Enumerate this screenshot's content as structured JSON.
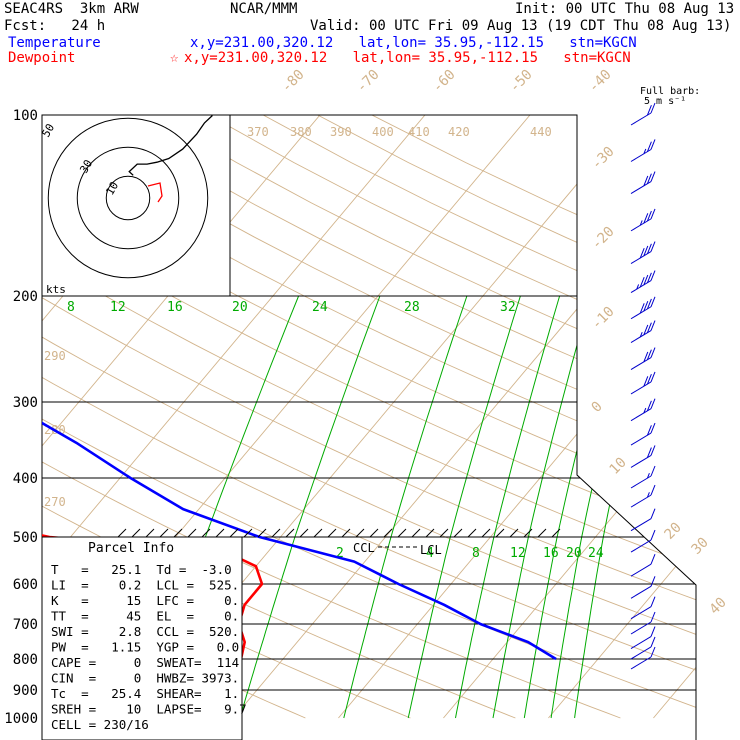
{
  "header": {
    "model": "SEAC4RS  3km ARW",
    "org": "NCAR/MMM",
    "init": "Init: 00 UTC Thu 08 Aug 13",
    "fcst": "Fcst:   24 h",
    "valid": "Valid: 00 UTC Fri 09 Aug 13 (19 CDT Thu 08 Aug 13)",
    "temp_label": "Temperature",
    "temp_loc": "x,y=231.00,320.12   lat,lon= 35.95,-112.15   stn=KGCN",
    "dew_label": "Dewpoint",
    "dew_loc": "x,y=231.00,320.12   lat,lon= 35.95,-112.15   stn=KGCN",
    "dew_star": "☆",
    "barb_title": "Full barb:",
    "barb_unit": "5 m s⁻¹"
  },
  "colors": {
    "temperature": "#0000ff",
    "dewpoint": "#ff0000",
    "isotherm": "#d2b48c",
    "mixing_ratio": "#00aa00",
    "isobar": "#000000"
  },
  "chart_data": {
    "type": "line",
    "subtype": "skew-T log-P sounding",
    "pressure_levels": [
      100,
      200,
      300,
      400,
      500,
      600,
      700,
      800,
      900,
      1000
    ],
    "isotherm_labels": [
      "-80",
      "-70",
      "-60",
      "-50",
      "-40",
      "-30",
      "-20",
      "-10",
      "0",
      "10",
      "20",
      "30",
      "40"
    ],
    "dry_adiabat_labels": [
      "370",
      "380",
      "390",
      "400",
      "410",
      "420",
      "440",
      "290",
      "280",
      "270"
    ],
    "mixing_ratio_labels_top": [
      "8",
      "12",
      "16",
      "20",
      "24",
      "28",
      "32"
    ],
    "mixing_ratio_labels_low": [
      "2",
      "4",
      "8",
      "12",
      "16",
      "20",
      "24"
    ],
    "series": [
      {
        "name": "Temperature",
        "color": "#0000ff",
        "pressure": [
          100,
          130,
          160,
          200,
          230,
          260,
          300,
          350,
          400,
          450,
          500,
          550,
          600,
          650,
          700,
          750,
          800
        ],
        "temp_c": [
          -73,
          -64,
          -58,
          -55,
          -55,
          -53,
          -47,
          -37,
          -29,
          -21.5,
          -12,
          -1,
          5,
          11,
          16,
          22,
          26
        ]
      },
      {
        "name": "Dewpoint",
        "color": "#ff0000",
        "pressure": [
          100,
          120,
          140,
          160,
          180,
          200,
          230,
          260,
          300,
          350,
          380,
          420,
          460,
          500,
          530,
          560,
          600,
          650,
          700,
          750,
          800
        ],
        "temp_c": [
          -86,
          -83,
          -82,
          -85,
          -80,
          -74,
          -68,
          -65,
          -62,
          -60,
          -57,
          -51,
          -44,
          -32,
          -14,
          -10,
          -8,
          -8,
          -7,
          -5,
          -4
        ]
      }
    ],
    "markers": {
      "ccl_label": "CCL",
      "lcl_label": "LCL"
    },
    "hodograph": {
      "unit_label": "kts",
      "ring_labels": [
        "50",
        "30",
        "10"
      ],
      "u_kts": [
        -10,
        -12,
        -8,
        -3,
        2,
        8,
        15,
        22,
        26,
        30
      ],
      "v_kts": [
        10,
        12,
        16,
        16,
        17,
        19,
        24,
        32,
        38,
        42
      ]
    },
    "wind_barbs": {
      "pressure": [
        100,
        115,
        130,
        150,
        170,
        190,
        210,
        230,
        255,
        280,
        310,
        340,
        370,
        400,
        430,
        470,
        510,
        560,
        610,
        660,
        700,
        740,
        770,
        800
      ],
      "speed_kts": [
        20,
        25,
        30,
        35,
        40,
        45,
        40,
        35,
        30,
        30,
        25,
        20,
        20,
        15,
        15,
        10,
        10,
        10,
        10,
        10,
        10,
        10,
        10,
        10
      ]
    }
  },
  "parcel": {
    "title": "Parcel Info",
    "rows": [
      "T   =   25.1  Td =  -3.0",
      "LI  =    0.2  LCL =  525.",
      "K   =     15  LFC =    0.",
      "TT  =     45  EL  =    0.",
      "SWI =    2.8  CCL =  520.",
      "PW  =   1.15  YGP =   0.0",
      "CAPE =     0  SWEAT=  114",
      "CIN  =     0  HWBZ= 3973.",
      "Tc  =   25.4  SHEAR=   1.",
      "SREH =    10  LAPSE=   9.7",
      "CELL = 230/16"
    ]
  }
}
